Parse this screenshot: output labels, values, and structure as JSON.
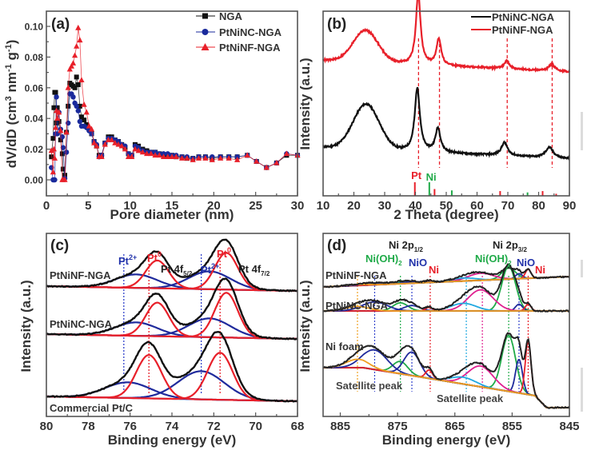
{
  "figure": {
    "artifacts": [
      "right-edge-grey-marks"
    ]
  },
  "chart_data": [
    {
      "id": "a",
      "panel_label": "(a)",
      "type": "scatter",
      "xlabel": "Pore diameter (nm)",
      "ylabel": "dV/dD (cm³ nm⁻¹ g⁻¹)",
      "ylabel_parts": {
        "base": "dV/dD (cm",
        "sup1": "3",
        "mid": " nm",
        "sup2": "-1",
        "mid2": " g",
        "sup3": "-1",
        "end": ")"
      },
      "xlim": [
        0,
        30
      ],
      "ylim": [
        -0.015,
        0.11
      ],
      "xticks": [
        0,
        5,
        10,
        15,
        20,
        25,
        30
      ],
      "xtick_labels": [
        "0",
        "5",
        "10",
        "15",
        "20",
        "25",
        "30"
      ],
      "yticks": [
        0.0,
        0.02,
        0.04,
        0.06,
        0.08,
        0.1
      ],
      "ytick_labels": [
        "0.00",
        "0.02",
        "0.04",
        "0.06",
        "0.08",
        "0.10"
      ],
      "legend_position": "top-right",
      "grid": false,
      "series": [
        {
          "name": "NGA",
          "color": "#111111",
          "marker": "square",
          "x": [
            0.6,
            0.8,
            0.9,
            1.0,
            1.1,
            1.2,
            1.3,
            1.5,
            1.7,
            1.9,
            2.0,
            2.2,
            2.4,
            2.6,
            2.8,
            3.0,
            3.2,
            3.4,
            3.6,
            3.8,
            4.0,
            4.2,
            4.5,
            4.8,
            5.1,
            5.4,
            5.7,
            6.0,
            6.3,
            6.6,
            7.0,
            7.4,
            7.8,
            8.2,
            8.6,
            9.0,
            9.4,
            9.8,
            10.2,
            10.6,
            11.0,
            11.5,
            12.0,
            12.5,
            13.0,
            13.5,
            14.0,
            14.5,
            15.0,
            15.5,
            16.2,
            16.8,
            17.5,
            18.2,
            19.0,
            19.8,
            20.8,
            21.8,
            22.8,
            24.0,
            25.1,
            26.3,
            27.5,
            28.7,
            30.0
          ],
          "y": [
            0.015,
            0.027,
            0.047,
            0.057,
            0.057,
            0.037,
            0.047,
            0.038,
            0.026,
            0.017,
            0.007,
            0.003,
            0.031,
            0.048,
            0.063,
            0.062,
            0.061,
            0.06,
            0.067,
            0.062,
            0.048,
            0.041,
            0.039,
            0.036,
            0.033,
            0.03,
            0.025,
            0.022,
            0.016,
            0.016,
            0.024,
            0.028,
            0.028,
            0.026,
            0.025,
            0.023,
            0.021,
            0.017,
            0.016,
            0.023,
            0.022,
            0.02,
            0.019,
            0.018,
            0.018,
            0.017,
            0.016,
            0.016,
            0.016,
            0.015,
            0.015,
            0.014,
            0.014,
            0.015,
            0.015,
            0.014,
            0.015,
            0.015,
            0.015,
            0.016,
            0.012,
            0.008,
            0.011,
            0.016,
            0.016
          ]
        },
        {
          "name": "PtNiNC-NGA",
          "color": "#1a2a9c",
          "marker": "circle",
          "x": [
            0.6,
            0.8,
            0.9,
            1.0,
            1.1,
            1.2,
            1.3,
            1.5,
            1.7,
            1.9,
            2.0,
            2.2,
            2.4,
            2.6,
            2.8,
            3.0,
            3.2,
            3.4,
            3.6,
            3.8,
            4.0,
            4.2,
            4.5,
            4.8,
            5.1,
            5.4,
            5.7,
            6.0,
            6.3,
            6.6,
            7.0,
            7.4,
            7.8,
            8.2,
            8.6,
            9.0,
            9.4,
            9.8,
            10.2,
            10.6,
            11.0,
            11.5,
            12.0,
            12.5,
            13.0,
            13.5,
            14.0,
            14.5,
            15.0,
            15.5,
            16.2,
            16.8,
            17.5,
            18.2,
            19.0,
            19.8,
            20.8,
            21.8,
            22.8,
            24.0,
            25.1,
            26.3,
            27.5,
            28.7,
            30.0
          ],
          "y": [
            0.008,
            0.0,
            0.0,
            0.0,
            0.03,
            0.054,
            0.03,
            0.044,
            0.033,
            0.028,
            0.021,
            0.001,
            0.018,
            0.037,
            0.056,
            0.056,
            0.054,
            0.05,
            0.048,
            0.045,
            0.038,
            0.035,
            0.035,
            0.034,
            0.032,
            0.03,
            0.025,
            0.023,
            0.015,
            0.016,
            0.024,
            0.027,
            0.027,
            0.026,
            0.025,
            0.023,
            0.022,
            0.017,
            0.016,
            0.022,
            0.021,
            0.019,
            0.018,
            0.018,
            0.018,
            0.017,
            0.017,
            0.017,
            0.016,
            0.016,
            0.015,
            0.015,
            0.014,
            0.015,
            0.015,
            0.015,
            0.015,
            0.015,
            0.015,
            0.016,
            0.012,
            0.008,
            0.011,
            0.017,
            0.016
          ]
        },
        {
          "name": "PtNiNF-NGA",
          "color": "#e8202a",
          "marker": "triangle",
          "x": [
            0.6,
            0.8,
            0.9,
            1.0,
            1.1,
            1.2,
            1.3,
            1.5,
            1.7,
            1.9,
            2.0,
            2.2,
            2.4,
            2.6,
            2.8,
            3.0,
            3.2,
            3.4,
            3.6,
            3.8,
            4.0,
            4.2,
            4.5,
            4.8,
            5.1,
            5.4,
            5.7,
            6.0,
            6.3,
            6.6,
            7.0,
            7.4,
            7.8,
            8.2,
            8.6,
            9.0,
            9.4,
            9.8,
            10.2,
            10.6,
            11.0,
            11.5,
            12.0,
            12.5,
            13.0,
            13.5,
            14.0,
            14.5,
            15.0,
            15.5,
            16.2,
            16.8,
            17.5,
            18.2,
            19.0,
            19.8,
            20.8,
            21.8,
            22.8,
            24.0,
            25.1,
            26.3,
            27.5,
            28.7,
            30.0
          ],
          "y": [
            0.019,
            0.005,
            0.02,
            0.014,
            0.034,
            0.045,
            0.04,
            0.044,
            0.032,
            0.0,
            0.0,
            0.0,
            0.031,
            0.06,
            0.072,
            0.074,
            0.076,
            0.081,
            0.087,
            0.099,
            0.091,
            0.065,
            0.049,
            0.044,
            0.035,
            0.033,
            0.024,
            0.022,
            0.015,
            0.015,
            0.023,
            0.026,
            0.026,
            0.024,
            0.023,
            0.022,
            0.02,
            0.015,
            0.015,
            0.02,
            0.019,
            0.018,
            0.017,
            0.017,
            0.016,
            0.016,
            0.015,
            0.015,
            0.015,
            0.015,
            0.014,
            0.014,
            0.013,
            0.014,
            0.014,
            0.013,
            0.014,
            0.014,
            0.013,
            0.016,
            0.012,
            0.008,
            0.011,
            0.017,
            0.016
          ]
        }
      ]
    },
    {
      "id": "b",
      "panel_label": "(b)",
      "type": "line",
      "xlabel": "2 Theta (degree)",
      "ylabel": "Intensity (a.u.)",
      "xlim": [
        10,
        90
      ],
      "xticks": [
        10,
        20,
        30,
        40,
        50,
        60,
        70,
        80,
        90
      ],
      "xtick_labels": [
        "10",
        "20",
        "30",
        "40",
        "50",
        "60",
        "70",
        "80",
        "90"
      ],
      "yticks": [],
      "legend_position": "top-right",
      "grid": false,
      "series": [
        {
          "name": "PtNiNC-NGA",
          "color": "#111111",
          "offset": 0.0,
          "baseline": 0.1,
          "peaks": [
            {
              "x": 24,
              "h": 0.17,
              "w": 4.2
            },
            {
              "x": 40.6,
              "h": 0.24,
              "w": 1.0
            },
            {
              "x": 47.3,
              "h": 0.09,
              "w": 1.0
            },
            {
              "x": 68.9,
              "h": 0.05,
              "w": 1.2
            },
            {
              "x": 83.5,
              "h": 0.04,
              "w": 1.5
            }
          ]
        },
        {
          "name": "PtNiNF-NGA",
          "color": "#e8202a",
          "offset": 0.33,
          "baseline": 0.1,
          "peaks": [
            {
              "x": 23.8,
              "h": 0.12,
              "w": 4.0
            },
            {
              "x": 40.9,
              "h": 0.27,
              "w": 0.9
            },
            {
              "x": 47.6,
              "h": 0.1,
              "w": 0.9
            },
            {
              "x": 69.7,
              "h": 0.03,
              "w": 1.0
            },
            {
              "x": 84.3,
              "h": 0.025,
              "w": 1.2
            }
          ]
        }
      ],
      "guide_lines_x": [
        41.0,
        47.8,
        69.8,
        84.4
      ],
      "guide_line_color": "#e8202a",
      "reference_sticks": [
        {
          "label": "Pt",
          "color": "#e8202a",
          "positions": [
            {
              "x": 39.8,
              "h": 1.0
            },
            {
              "x": 46.2,
              "h": 0.5
            },
            {
              "x": 67.5,
              "h": 0.35
            },
            {
              "x": 81.3,
              "h": 0.35
            },
            {
              "x": 85.7,
              "h": 0.15
            }
          ]
        },
        {
          "label": "Ni",
          "color": "#1faa48",
          "positions": [
            {
              "x": 44.5,
              "h": 1.0
            },
            {
              "x": 51.8,
              "h": 0.4
            },
            {
              "x": 76.4,
              "h": 0.25
            }
          ]
        }
      ]
    },
    {
      "id": "c",
      "panel_label": "(c)",
      "type": "line",
      "xlabel": "Binding energy (eV)",
      "ylabel": "Intensity (a.u.)",
      "xlim": [
        80,
        68
      ],
      "xticks": [
        80,
        78,
        76,
        74,
        72,
        70,
        68
      ],
      "xtick_labels": [
        "80",
        "78",
        "76",
        "74",
        "72",
        "70",
        "68"
      ],
      "grid": false,
      "samples": [
        {
          "name": "PtNiNF-NGA",
          "pt0": [
            {
              "x": 74.7,
              "h": 0.62,
              "w": 0.55
            },
            {
              "x": 71.4,
              "h": 0.82,
              "w": 0.55
            }
          ],
          "pt2": [
            {
              "x": 75.7,
              "h": 0.3,
              "w": 1.0
            },
            {
              "x": 72.2,
              "h": 0.4,
              "w": 1.0
            }
          ]
        },
        {
          "name": "PtNiNC-NGA",
          "pt0": [
            {
              "x": 74.7,
              "h": 0.75,
              "w": 0.55
            },
            {
              "x": 71.4,
              "h": 1.0,
              "w": 0.55
            }
          ],
          "pt2": [
            {
              "x": 75.7,
              "h": 0.3,
              "w": 1.0
            },
            {
              "x": 72.2,
              "h": 0.42,
              "w": 1.0
            }
          ]
        },
        {
          "name": "Commercial Pt/C",
          "pt0": [
            {
              "x": 75.1,
              "h": 0.97,
              "w": 0.6
            },
            {
              "x": 71.7,
              "h": 1.05,
              "w": 0.6
            }
          ],
          "pt2": [
            {
              "x": 76.1,
              "h": 0.35,
              "w": 1.1
            },
            {
              "x": 72.6,
              "h": 0.63,
              "w": 1.1
            }
          ]
        }
      ],
      "component_colors": {
        "envelope": "#111111",
        "pt0": "#e8202a",
        "pt2": "#1f2a9c"
      },
      "guide_lines": [
        {
          "x": 76.3,
          "color": "#3344cc"
        },
        {
          "x": 75.1,
          "color": "#e8202a"
        },
        {
          "x": 72.6,
          "color": "#3344cc"
        },
        {
          "x": 71.7,
          "color": "#e8202a"
        }
      ],
      "annotations": [
        {
          "text": "Pt",
          "sup": "2+",
          "color": "#2233aa",
          "x": 76.5
        },
        {
          "text": "Pt",
          "sup": "0",
          "color": "#e8202a",
          "x": 75.1
        },
        {
          "text": "Pt 4f",
          "sub": "5/2",
          "color": "#222222",
          "x": 73.7
        },
        {
          "text": "Pt",
          "sup": "2+",
          "color": "#2233aa",
          "x": 72.6
        },
        {
          "text": "Pt",
          "sup": "0",
          "color": "#e8202a",
          "x": 71.5
        },
        {
          "text": "Pt 4f",
          "sub": "7/2",
          "color": "#222222",
          "x": 70.3
        }
      ]
    },
    {
      "id": "d",
      "panel_label": "(d)",
      "type": "line",
      "xlabel": "Binding energy (eV)",
      "ylabel": "Intensity (a.u.)",
      "xlim": [
        888,
        845
      ],
      "xticks": [
        885,
        875,
        865,
        855,
        845
      ],
      "xtick_labels": [
        "885",
        "875",
        "865",
        "855",
        "845"
      ],
      "grid": false,
      "samples": [
        {
          "name": "PtNiNF-NGA",
          "scale": 0.35
        },
        {
          "name": "PtNiNC-NGA",
          "scale": 0.85
        },
        {
          "name": "Ni foam",
          "scale": 1.0
        }
      ],
      "components": [
        {
          "name": "Ni(OH)2 2p3/2",
          "color": "#1faa48",
          "x": 855.6,
          "w": 1.2
        },
        {
          "name": "NiO 2p3/2",
          "color": "#1f2a9c",
          "x": 853.8,
          "w": 0.6
        },
        {
          "name": "Ni 2p3/2",
          "color": "#e8202a",
          "x": 852.2,
          "w": 0.5
        },
        {
          "name": "satellite 2p3/2 (pink)",
          "color": "#e02090",
          "x": 860.5,
          "w": 2.2
        },
        {
          "name": "satellite 2p3/2 (cyan)",
          "color": "#20a8e0",
          "x": 863.5,
          "w": 2.2
        },
        {
          "name": "Ni(OH)2 2p1/2",
          "color": "#1faa48",
          "x": 874.5,
          "w": 1.3
        },
        {
          "name": "NiO 2p1/2",
          "color": "#1f2a9c",
          "x": 872.5,
          "w": 1.4
        },
        {
          "name": "Ni 2p1/2",
          "color": "#e8202a",
          "x": 869.5,
          "w": 0.6
        },
        {
          "name": "satellite 2p1/2 (navy)",
          "color": "#1f2a9c",
          "x": 879,
          "w": 2.2
        },
        {
          "name": "satellite 2p1/2 (orange)",
          "color": "#f0a020",
          "x": 882,
          "w": 2.0
        }
      ],
      "background_color": "#f0a020",
      "guide_lines": [
        {
          "x": 882.0,
          "color": "#f0a020"
        },
        {
          "x": 879.0,
          "color": "#3344cc"
        },
        {
          "x": 874.5,
          "color": "#1faa48"
        },
        {
          "x": 872.5,
          "color": "#3344cc"
        },
        {
          "x": 869.3,
          "color": "#e8202a"
        },
        {
          "x": 863.0,
          "color": "#20a8e0"
        },
        {
          "x": 860.2,
          "color": "#e02090"
        },
        {
          "x": 855.6,
          "color": "#1faa48"
        },
        {
          "x": 853.8,
          "color": "#3344cc"
        },
        {
          "x": 852.2,
          "color": "#e8202a"
        }
      ],
      "annotations": [
        {
          "text": "Ni 2p",
          "sub": "1/2",
          "color": "#222222"
        },
        {
          "text": "Ni(OH)",
          "sub": "2",
          "color": "#1faa48"
        },
        {
          "text": "NiO",
          "color": "#2233aa"
        },
        {
          "text": "Ni",
          "color": "#e8202a"
        },
        {
          "text": "Ni 2p",
          "sub": "3/2",
          "color": "#222222"
        },
        {
          "text": "Ni(OH)",
          "sub": "2",
          "color": "#1faa48"
        },
        {
          "text": "NiO",
          "color": "#2233aa"
        },
        {
          "text": "Ni",
          "color": "#e8202a"
        },
        {
          "text": "Satellite peak",
          "color": "#444444"
        },
        {
          "text": "Satellite peak",
          "color": "#444444"
        }
      ]
    }
  ]
}
